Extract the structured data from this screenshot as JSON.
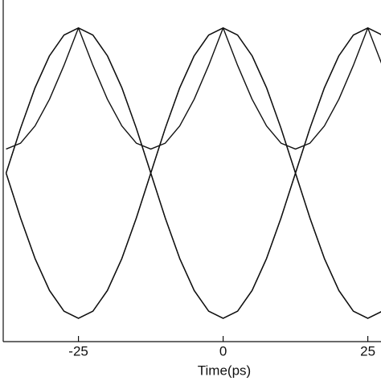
{
  "chart_data": {
    "type": "line",
    "xlabel": "Time(ps)",
    "x": [
      -37.5,
      -35,
      -32.5,
      -30,
      -27.5,
      -25,
      -22.5,
      -20,
      -17.5,
      -15,
      -12.5,
      -10,
      -7.5,
      -5,
      -2.5,
      0,
      2.5,
      5,
      7.5,
      10,
      12.5,
      15,
      17.5,
      20,
      22.5,
      25,
      27.5
    ],
    "xlim": [
      -38,
      28
    ],
    "xticks": [
      -25,
      0,
      25
    ],
    "ylim": [
      -1.1,
      1.1
    ],
    "series": [
      {
        "color": "#111111",
        "values": [
          0.14,
          0.178,
          0.289,
          0.461,
          0.679,
          0.92,
          0.874,
          0.741,
          0.535,
          0.274,
          -0.015,
          -0.304,
          -0.565,
          -0.771,
          -0.904,
          -0.95,
          -0.904,
          -0.771,
          -0.565,
          -0.304,
          -0.015,
          0.274,
          0.535,
          0.741,
          0.874,
          0.92,
          0.679
        ]
      },
      {
        "color": "#111111",
        "values": [
          -0.015,
          0.274,
          0.535,
          0.741,
          0.874,
          0.92,
          0.679,
          0.461,
          0.289,
          0.178,
          0.14,
          0.178,
          0.289,
          0.461,
          0.679,
          0.92,
          0.874,
          0.741,
          0.535,
          0.274,
          -0.015,
          -0.304,
          -0.565,
          -0.771,
          -0.904,
          -0.95,
          -0.904
        ]
      },
      {
        "color": "#111111",
        "values": [
          -0.015,
          -0.304,
          -0.565,
          -0.771,
          -0.904,
          -0.95,
          -0.904,
          -0.771,
          -0.565,
          -0.304,
          -0.015,
          0.274,
          0.535,
          0.741,
          0.874,
          0.92,
          0.679,
          0.461,
          0.289,
          0.178,
          0.14,
          0.178,
          0.289,
          0.461,
          0.679,
          0.92,
          0.874
        ]
      },
      {
        "color": "#111111",
        "values": [
          -0.015,
          0.274,
          0.535,
          0.741,
          0.874,
          0.92,
          0.874,
          0.741,
          0.535,
          0.274,
          -0.015,
          -0.304,
          -0.565,
          -0.771,
          -0.904,
          -0.95,
          -0.904,
          -0.771,
          -0.565,
          -0.304,
          -0.015,
          0.274,
          0.535,
          0.741,
          0.874,
          0.92,
          0.874
        ]
      },
      {
        "color": "#111111",
        "values": [
          -0.015,
          -0.304,
          -0.565,
          -0.771,
          -0.904,
          -0.95,
          -0.904,
          -0.771,
          -0.565,
          -0.304,
          -0.015,
          0.274,
          0.535,
          0.741,
          0.874,
          0.92,
          0.874,
          0.741,
          0.535,
          0.274,
          -0.015,
          -0.304,
          -0.565,
          -0.771,
          -0.904,
          -0.95,
          -0.904
        ]
      }
    ]
  }
}
